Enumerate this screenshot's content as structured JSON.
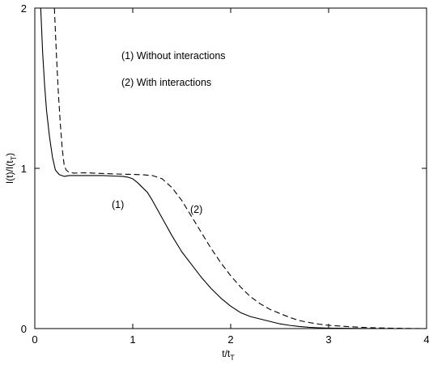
{
  "chart_data": {
    "type": "line",
    "xlabel": "t/t_T",
    "xlabel_main": "t/t",
    "xlabel_sub": "T",
    "ylabel": "I(t)/I(t_T)",
    "ylabel_main": "I(t)/I(t",
    "ylabel_sub": "T",
    "ylabel_close": ")",
    "xlim": [
      0,
      4
    ],
    "ylim": [
      0,
      2
    ],
    "x_ticks": [
      "0",
      "1",
      "2",
      "3",
      "4"
    ],
    "y_ticks": [
      "0",
      "1",
      "2"
    ],
    "grid": false,
    "annotations": {
      "legend_line1": "(1) Without interactions",
      "legend_line2": "(2) With interactions",
      "curve1_tag": "(1)",
      "curve2_tag": "(2)"
    },
    "series": [
      {
        "id": "1",
        "style": "solid",
        "x": [
          0.06,
          0.08,
          0.1,
          0.12,
          0.15,
          0.18,
          0.21,
          0.25,
          0.3,
          0.35,
          0.4,
          0.5,
          0.6,
          0.7,
          0.8,
          0.9,
          0.95,
          1.0,
          1.05,
          1.1,
          1.15,
          1.2,
          1.3,
          1.4,
          1.5,
          1.6,
          1.7,
          1.8,
          1.9,
          2.0,
          2.1,
          2.2,
          2.3,
          2.4,
          2.5,
          2.6,
          2.7,
          2.8,
          2.9,
          3.0,
          3.1,
          3.2,
          3.3,
          3.5
        ],
        "y": [
          2.0,
          1.72,
          1.52,
          1.36,
          1.2,
          1.07,
          0.99,
          0.96,
          0.95,
          0.955,
          0.955,
          0.955,
          0.955,
          0.955,
          0.952,
          0.95,
          0.945,
          0.935,
          0.91,
          0.88,
          0.85,
          0.8,
          0.69,
          0.58,
          0.48,
          0.4,
          0.32,
          0.25,
          0.19,
          0.14,
          0.1,
          0.075,
          0.06,
          0.045,
          0.03,
          0.02,
          0.013,
          0.008,
          0.005,
          0.003,
          0.002,
          0.0015,
          0.001,
          0.0
        ]
      },
      {
        "id": "2",
        "style": "dashed",
        "x": [
          0.2,
          0.22,
          0.24,
          0.26,
          0.28,
          0.3,
          0.32,
          0.35,
          0.4,
          0.5,
          0.6,
          0.8,
          1.0,
          1.1,
          1.2,
          1.3,
          1.4,
          1.5,
          1.6,
          1.7,
          1.8,
          1.9,
          2.0,
          2.1,
          2.2,
          2.3,
          2.4,
          2.5,
          2.6,
          2.7,
          2.8,
          2.9,
          3.0,
          3.2,
          3.4,
          3.6,
          3.8,
          4.0
        ],
        "y": [
          2.0,
          1.72,
          1.48,
          1.28,
          1.12,
          1.02,
          0.99,
          0.975,
          0.97,
          0.972,
          0.97,
          0.965,
          0.962,
          0.96,
          0.955,
          0.935,
          0.88,
          0.8,
          0.7,
          0.6,
          0.5,
          0.41,
          0.33,
          0.26,
          0.2,
          0.155,
          0.12,
          0.095,
          0.07,
          0.05,
          0.038,
          0.028,
          0.02,
          0.012,
          0.006,
          0.003,
          0.001,
          0.0
        ]
      }
    ]
  }
}
